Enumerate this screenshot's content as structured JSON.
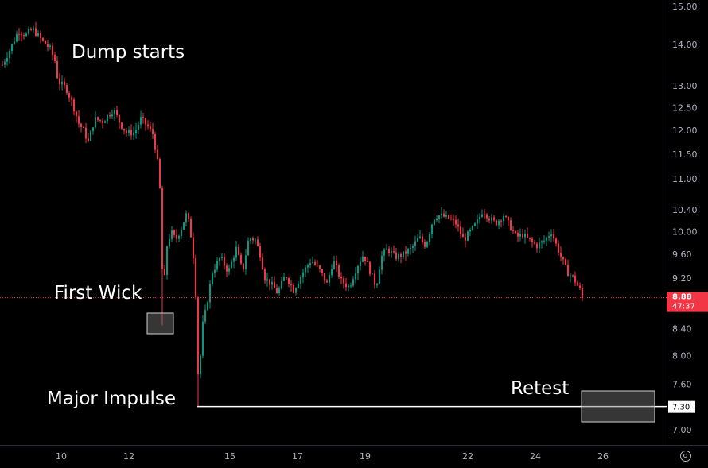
{
  "chart_data": {
    "type": "candlestick",
    "x_dates": [
      {
        "label": "10",
        "date": "10"
      },
      {
        "label": "12",
        "date": "12"
      },
      {
        "label": "15",
        "date": "15"
      },
      {
        "label": "17",
        "date": "17"
      },
      {
        "label": "19",
        "date": "19"
      },
      {
        "label": "22",
        "date": "22"
      },
      {
        "label": "24",
        "date": "24"
      },
      {
        "label": "26",
        "date": "26"
      }
    ],
    "y_ticks": [
      "15.00",
      "14.00",
      "13.00",
      "12.50",
      "12.00",
      "11.50",
      "11.00",
      "10.40",
      "10.00",
      "9.60",
      "9.20",
      "8.40",
      "8.00",
      "7.60",
      "7.00"
    ],
    "y_scale": "log",
    "ylim": [
      6.8,
      15.2
    ],
    "current_price": {
      "value": "8.88",
      "countdown": "47:37",
      "color": "#f23645"
    },
    "level_line": {
      "value": "7.30",
      "color": "#ffffff"
    },
    "annotations": [
      {
        "text": "Dump starts"
      },
      {
        "text": "First Wick"
      },
      {
        "text": "Major Impulse"
      },
      {
        "text": "Retest"
      }
    ],
    "up_color": "#089981",
    "down_color": "#f23645",
    "grid": false
  }
}
